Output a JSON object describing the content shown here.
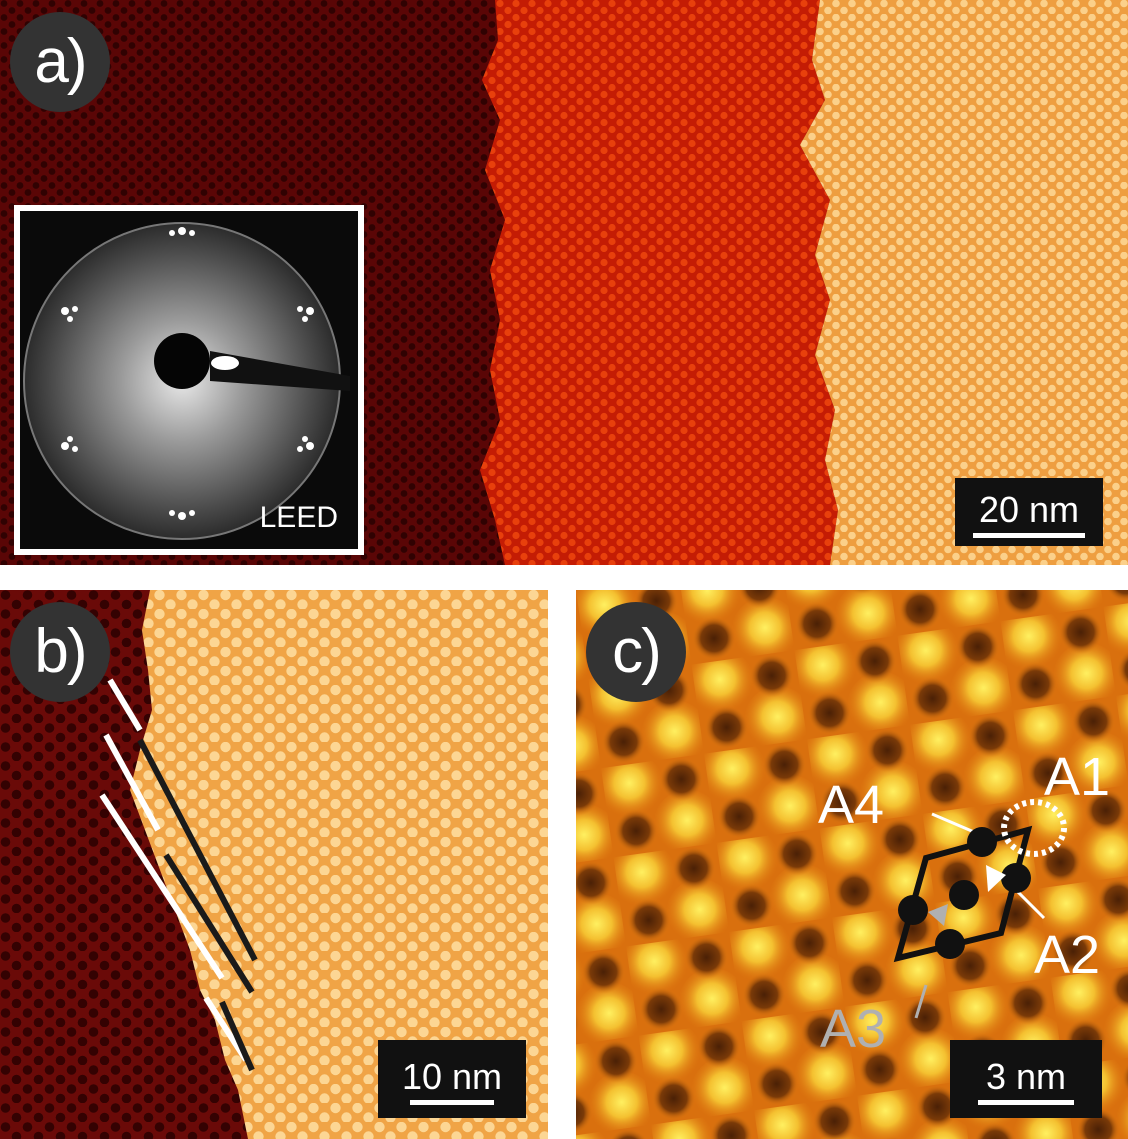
{
  "panels": {
    "a": {
      "label": "a)",
      "scale_bar": "20 nm",
      "inset_label": "LEED"
    },
    "b": {
      "label": "b)",
      "scale_bar": "10 nm"
    },
    "c": {
      "label": "c)",
      "scale_bar": "3 nm",
      "sites": [
        "A1",
        "A2",
        "A3",
        "A4"
      ]
    }
  },
  "colors": {
    "terrace_dark": "#5a0606",
    "terrace_mid": "#c81e04",
    "terrace_light": "#f5b35c",
    "panel_c_base": "#e07a10",
    "label_bg": "#333333",
    "scalebar_bg": "#111111",
    "site_A3": "#b0b0b0"
  }
}
